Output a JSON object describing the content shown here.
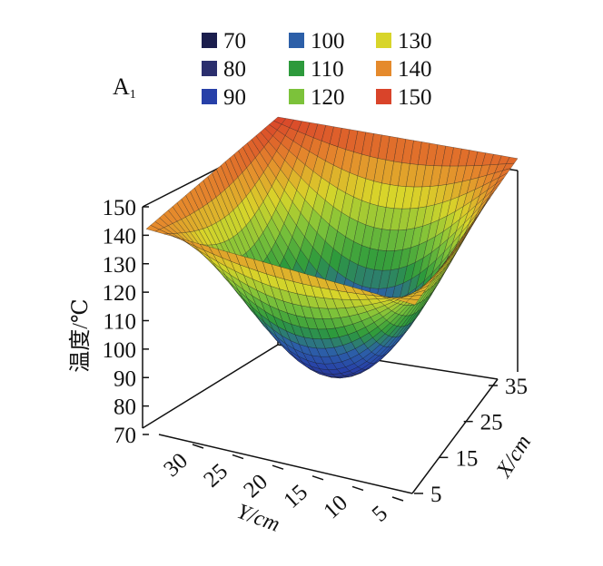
{
  "panel_label": "A",
  "panel_label_sub": "1",
  "chart_data": {
    "type": "surface3d",
    "title": "",
    "zlabel": "温度/℃",
    "xlabel": "X/cm",
    "ylabel": "Y/cm",
    "zlim": [
      70,
      150
    ],
    "z_ticks": [
      "150",
      "140",
      "130",
      "120",
      "110",
      "100",
      "90",
      "80",
      "70"
    ],
    "x_ticks": [
      "5",
      "15",
      "25",
      "35"
    ],
    "y_ticks": [
      "30",
      "25",
      "20",
      "15",
      "10",
      "5"
    ],
    "legend": [
      {
        "label": "70",
        "color": "#1b1e4d"
      },
      {
        "label": "80",
        "color": "#2b2f6e"
      },
      {
        "label": "90",
        "color": "#2740a8"
      },
      {
        "label": "100",
        "color": "#2c5fa8"
      },
      {
        "label": "110",
        "color": "#2d9a3c"
      },
      {
        "label": "120",
        "color": "#7cc23a"
      },
      {
        "label": "130",
        "color": "#d8d52a"
      },
      {
        "label": "140",
        "color": "#e58a2c"
      },
      {
        "label": "150",
        "color": "#d9442a"
      }
    ],
    "corner_values": {
      "far_corner": 150,
      "left_corner": 140,
      "right_corner": 145,
      "front_corner": 135,
      "minimum": 82
    }
  }
}
